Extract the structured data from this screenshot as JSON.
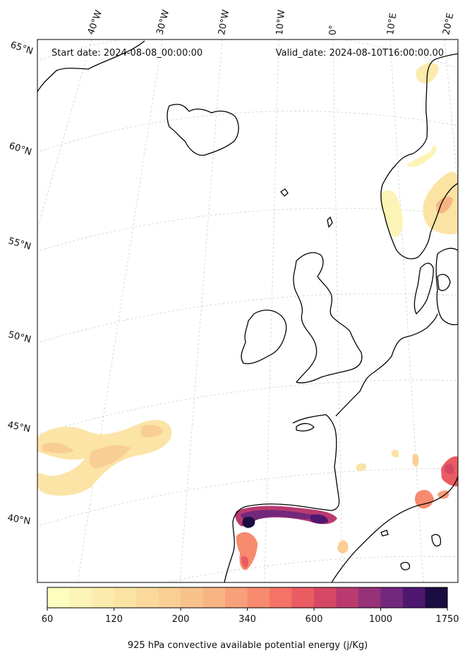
{
  "header": {
    "start_date": "Start date: 2024-08-08_00:00:00",
    "valid_date": "Valid_date: 2024-08-10T16:00:00.00"
  },
  "longitude_labels": [
    "40°W",
    "30°W",
    "20°W",
    "10°W",
    "0°",
    "10°E",
    "20°E"
  ],
  "latitude_labels": [
    "65°N",
    "60°N",
    "55°N",
    "50°N",
    "45°N",
    "40°N"
  ],
  "colorbar": {
    "label": "925 hPa convective available potential energy (j/Kg)",
    "tick_labels": [
      "60",
      "120",
      "200",
      "340",
      "600",
      "1000",
      "1750"
    ],
    "colors": [
      "#fcfdbf",
      "#fcf4b6",
      "#fbecad",
      "#fbe3a4",
      "#fad99b",
      "#f9cf93",
      "#f8c28b",
      "#f8b483",
      "#f7a07a",
      "#f78a6f",
      "#f47366",
      "#ea5b62",
      "#d64765",
      "#b93a6f",
      "#963278",
      "#72287c",
      "#4e1870",
      "#1b0c41"
    ]
  },
  "map": {
    "projection": "polar stereographic",
    "grid": "dashed graticule",
    "field": "925 hPa convective available potential energy"
  }
}
